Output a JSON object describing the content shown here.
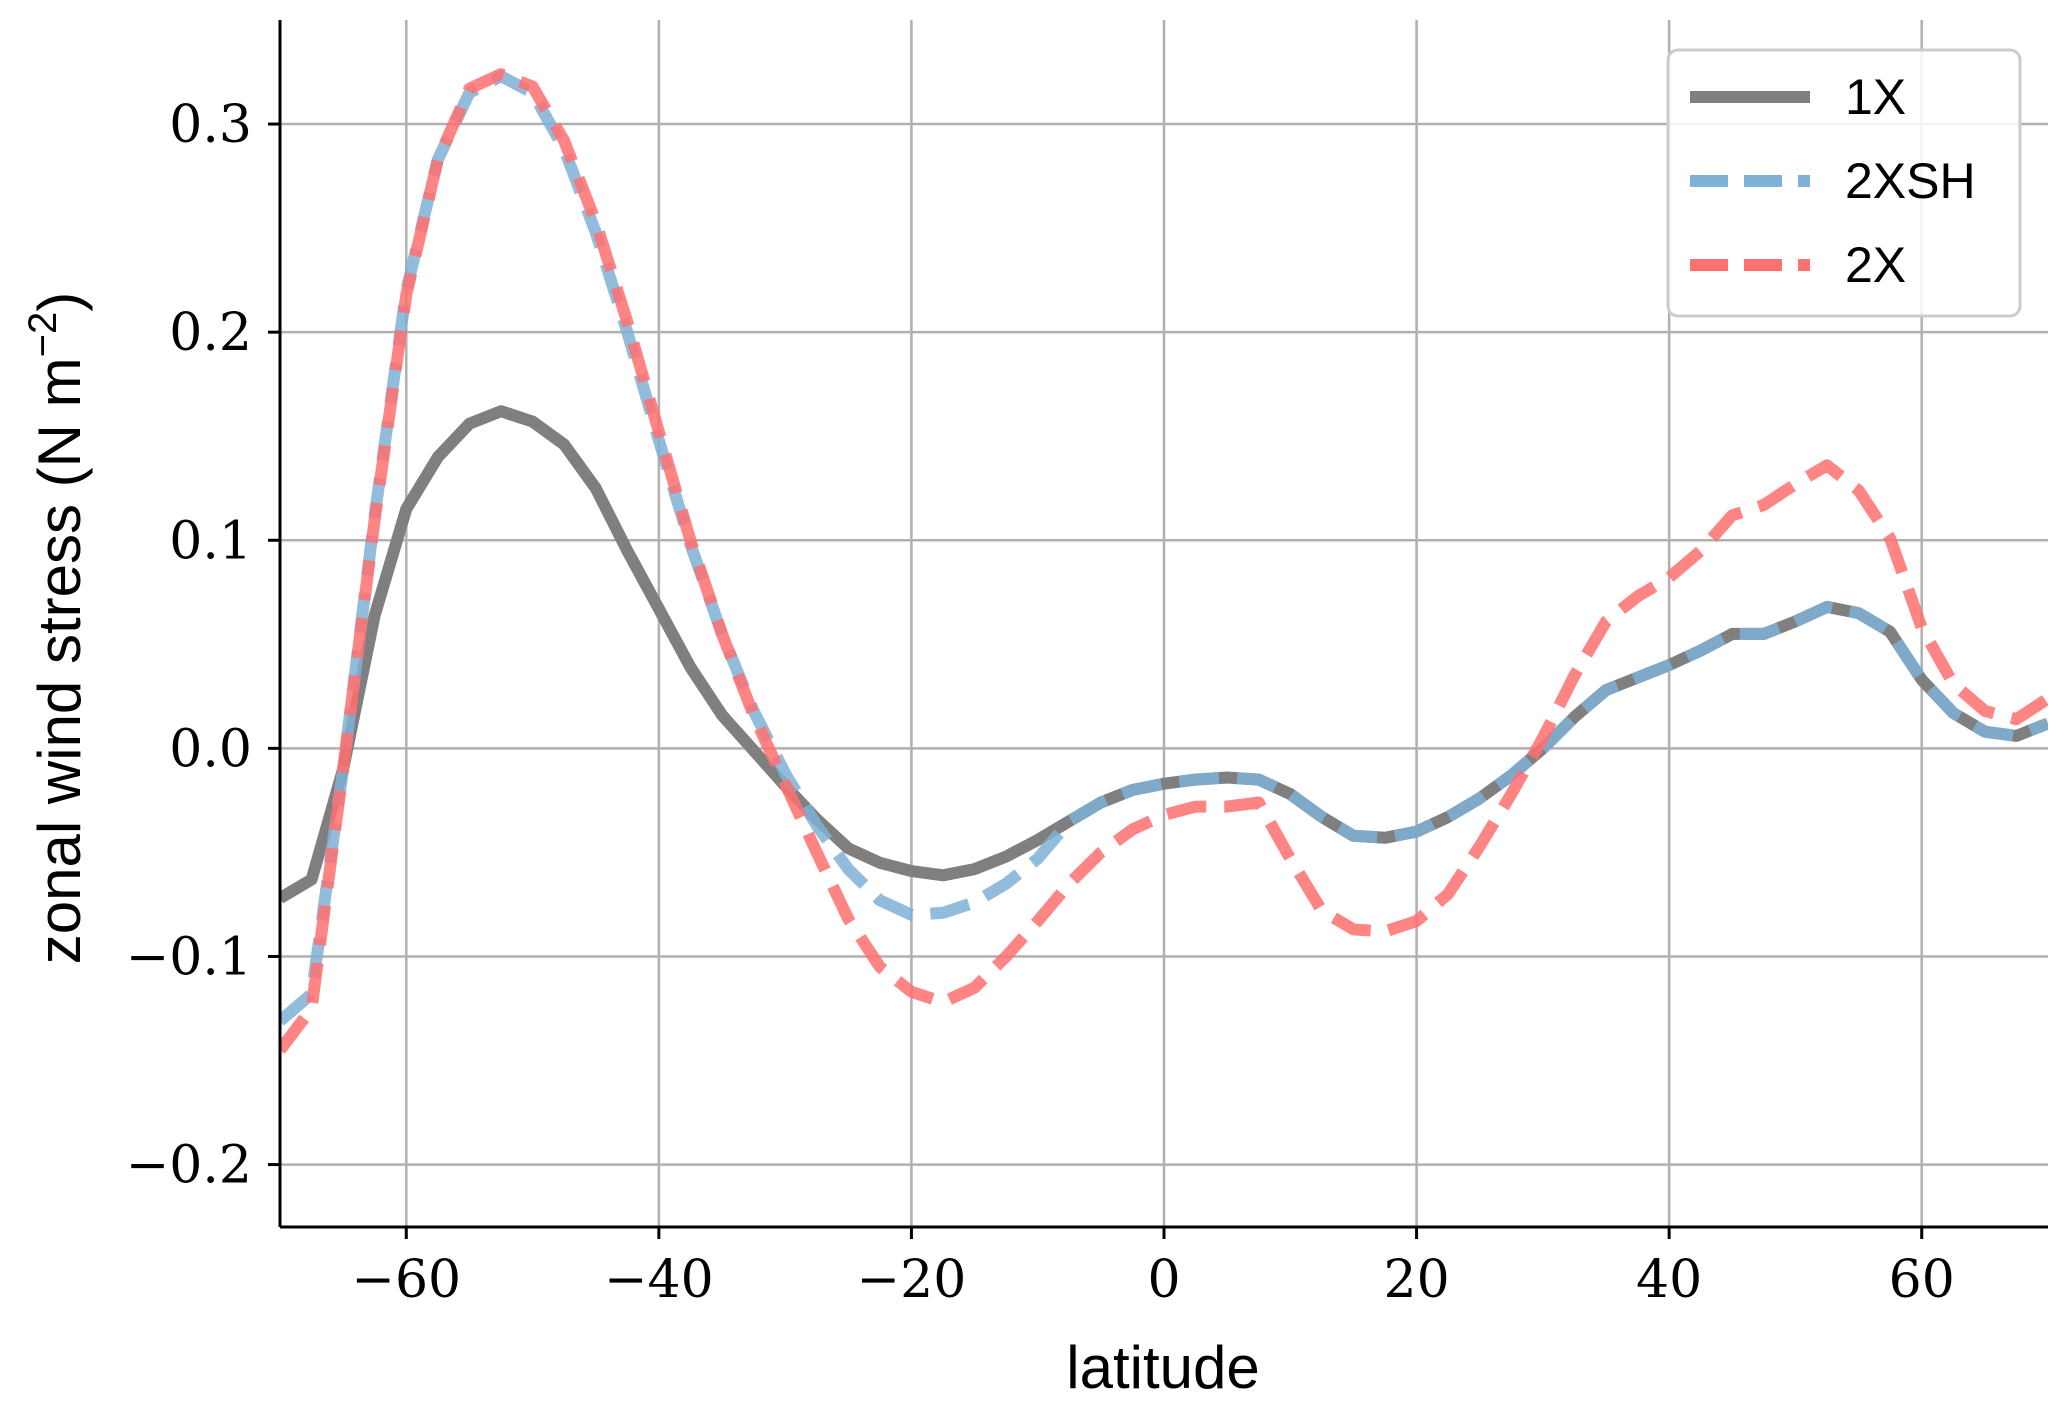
{
  "chart_data": {
    "type": "line",
    "xlabel": "latitude",
    "ylabel": "zonal wind stress (N m",
    "ylabel_sup": "−2",
    "ylabel_close": ")",
    "xlim": [
      -70,
      70
    ],
    "ylim": [
      -0.23,
      0.35
    ],
    "xticks": [
      -60,
      -40,
      -20,
      0,
      20,
      40,
      60
    ],
    "xtick_labels": [
      "−60",
      "−40",
      "−20",
      "0",
      "20",
      "40",
      "60"
    ],
    "yticks": [
      -0.2,
      -0.1,
      0.0,
      0.1,
      0.2,
      0.3
    ],
    "ytick_labels": [
      "−0.2",
      "−0.1",
      "0.0",
      "0.1",
      "0.2",
      "0.3"
    ],
    "grid": true,
    "legend_position": "top-right",
    "x": [
      -70,
      -67.5,
      -65,
      -62.5,
      -60,
      -57.5,
      -55,
      -52.5,
      -50,
      -47.5,
      -45,
      -42.5,
      -40,
      -37.5,
      -35,
      -32.5,
      -30,
      -27.5,
      -25,
      -22.5,
      -20,
      -17.5,
      -15,
      -12.5,
      -10,
      -7.5,
      -5,
      -2.5,
      0,
      2.5,
      5,
      7.5,
      10,
      12.5,
      15,
      17.5,
      20,
      22.5,
      25,
      27.5,
      30,
      32.5,
      35,
      37.5,
      40,
      42.5,
      45,
      47.5,
      50,
      52.5,
      55,
      57.5,
      60,
      62.5,
      65,
      67.5,
      70
    ],
    "series": [
      {
        "name": "1X",
        "color": "#7f7f7f",
        "style": "solid",
        "values": [
          -0.072,
          -0.063,
          -0.01,
          0.064,
          0.115,
          0.14,
          0.156,
          0.162,
          0.157,
          0.146,
          0.125,
          0.095,
          0.067,
          0.039,
          0.016,
          -0.001,
          -0.018,
          -0.034,
          -0.048,
          -0.055,
          -0.059,
          -0.061,
          -0.058,
          -0.052,
          -0.044,
          -0.035,
          -0.026,
          -0.02,
          -0.017,
          -0.015,
          -0.014,
          -0.015,
          -0.022,
          -0.033,
          -0.042,
          -0.043,
          -0.04,
          -0.033,
          -0.024,
          -0.013,
          0.0,
          0.015,
          0.028,
          0.034,
          0.04,
          0.047,
          0.055,
          0.055,
          0.061,
          0.068,
          0.065,
          0.056,
          0.033,
          0.017,
          0.008,
          0.006,
          0.012
        ]
      },
      {
        "name": "2XSH",
        "color": "#7fb0d6",
        "style": "dashed",
        "values": [
          -0.131,
          -0.118,
          -0.01,
          0.112,
          0.22,
          0.283,
          0.315,
          0.323,
          0.315,
          0.288,
          0.248,
          0.2,
          0.148,
          0.098,
          0.055,
          0.018,
          -0.012,
          -0.037,
          -0.058,
          -0.073,
          -0.08,
          -0.079,
          -0.074,
          -0.065,
          -0.053,
          -0.035,
          -0.026,
          -0.02,
          -0.017,
          -0.015,
          -0.014,
          -0.015,
          -0.022,
          -0.033,
          -0.042,
          -0.043,
          -0.04,
          -0.033,
          -0.024,
          -0.013,
          0.0,
          0.015,
          0.028,
          0.034,
          0.04,
          0.047,
          0.055,
          0.055,
          0.061,
          0.068,
          0.065,
          0.056,
          0.033,
          0.017,
          0.008,
          0.006,
          0.012
        ]
      },
      {
        "name": "2X",
        "color": "#ff7070",
        "style": "dashed",
        "values": [
          -0.145,
          -0.125,
          -0.01,
          0.11,
          0.218,
          0.283,
          0.317,
          0.324,
          0.318,
          0.292,
          0.253,
          0.205,
          0.152,
          0.1,
          0.055,
          0.016,
          -0.017,
          -0.05,
          -0.082,
          -0.105,
          -0.117,
          -0.122,
          -0.115,
          -0.1,
          -0.083,
          -0.065,
          -0.05,
          -0.039,
          -0.032,
          -0.028,
          -0.028,
          -0.026,
          -0.053,
          -0.078,
          -0.087,
          -0.088,
          -0.083,
          -0.07,
          -0.047,
          -0.022,
          0.005,
          0.035,
          0.061,
          0.073,
          0.082,
          0.095,
          0.112,
          0.117,
          0.127,
          0.136,
          0.124,
          0.101,
          0.058,
          0.031,
          0.018,
          0.014,
          0.024
        ]
      }
    ]
  }
}
